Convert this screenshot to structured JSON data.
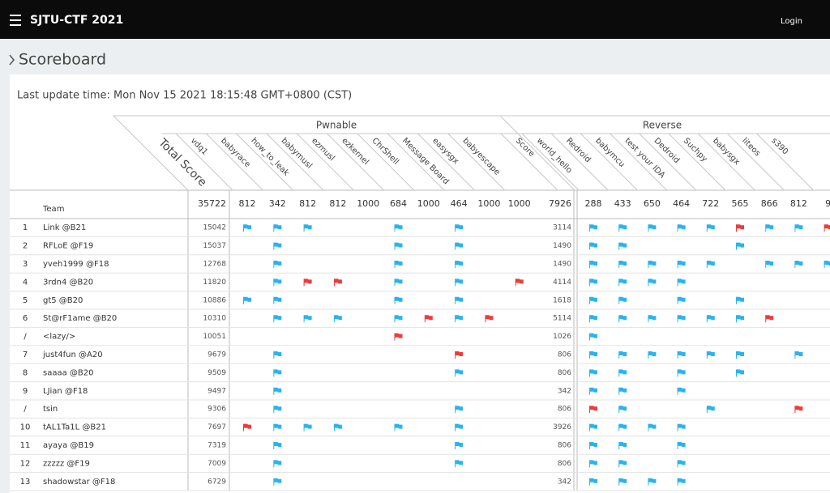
{
  "header": {
    "brand": "SJTU-CTF 2021",
    "login": "Login"
  },
  "page_title": "Scoreboard",
  "last_update": "Last update time: Mon Nov 15 2021 18:15:48 GMT+0800 (CST)",
  "table": {
    "team_header": "Team",
    "total_header": "Total Score",
    "total_points": 35722,
    "categories": [
      {
        "name": "Pwnable",
        "score_header": "Score",
        "score_points": 7926,
        "challenges": [
          {
            "name": "vdq1",
            "points": 812
          },
          {
            "name": "babyrace",
            "points": 342
          },
          {
            "name": "how_to_leak",
            "points": 812
          },
          {
            "name": "babymusl",
            "points": 812
          },
          {
            "name": "ezmusl",
            "points": 1000
          },
          {
            "name": "ezkernel",
            "points": 684
          },
          {
            "name": "ChrShell",
            "points": 1000
          },
          {
            "name": "Message Board",
            "points": 464
          },
          {
            "name": "easysgx",
            "points": 1000
          },
          {
            "name": "babyescape",
            "points": 1000
          }
        ]
      },
      {
        "name": "Reverse",
        "challenges": [
          {
            "name": "world_hello",
            "points": 288
          },
          {
            "name": "Redroid",
            "points": 433
          },
          {
            "name": "babymcu",
            "points": 650
          },
          {
            "name": "test your IDA",
            "points": 464
          },
          {
            "name": "Dedroid",
            "points": 722
          },
          {
            "name": "Suchpy",
            "points": 565
          },
          {
            "name": "babysgx",
            "points": 866
          },
          {
            "name": "liteos",
            "points": 812
          },
          {
            "name": "s390",
            "points": "9"
          }
        ]
      }
    ],
    "rows": [
      {
        "rank": 1,
        "team": "Link @B21",
        "total": 15042,
        "score": 3114,
        "flags": [
          [
            "b",
            "b",
            "b",
            null,
            null,
            "b",
            null,
            "b",
            null,
            null
          ],
          [
            "b",
            "b",
            "b",
            "b",
            "b",
            "r",
            "b",
            "b",
            "r"
          ]
        ]
      },
      {
        "rank": 2,
        "team": "RFLoE @F19",
        "total": 15037,
        "score": 1490,
        "flags": [
          [
            null,
            "b",
            null,
            null,
            null,
            "b",
            null,
            "b",
            null,
            null
          ],
          [
            "b",
            "b",
            null,
            null,
            null,
            "b",
            null,
            null,
            null
          ]
        ]
      },
      {
        "rank": 3,
        "team": "yveh1999 @F18",
        "total": 12768,
        "score": 1490,
        "flags": [
          [
            null,
            "b",
            null,
            null,
            null,
            "b",
            null,
            "b",
            null,
            null
          ],
          [
            "b",
            "b",
            "b",
            "b",
            "b",
            null,
            "b",
            "b",
            "b"
          ]
        ]
      },
      {
        "rank": 4,
        "team": "3rdn4 @B20",
        "total": 11820,
        "score": 4114,
        "flags": [
          [
            null,
            "b",
            "r",
            "r",
            null,
            "b",
            null,
            "b",
            null,
            "r"
          ],
          [
            "b",
            "b",
            "b",
            "b",
            null,
            null,
            null,
            null,
            null
          ]
        ]
      },
      {
        "rank": 5,
        "team": "gt5 @B20",
        "total": 10886,
        "score": 1618,
        "flags": [
          [
            "b",
            "b",
            null,
            null,
            null,
            "b",
            null,
            "b",
            null,
            null
          ],
          [
            "b",
            "b",
            null,
            "b",
            null,
            "b",
            null,
            null,
            null
          ]
        ]
      },
      {
        "rank": 6,
        "team": "St@rF1ame @B20",
        "total": 10310,
        "score": 5114,
        "flags": [
          [
            null,
            "b",
            "b",
            "b",
            null,
            "b",
            "r",
            "b",
            "r",
            null
          ],
          [
            "b",
            "b",
            "b",
            "b",
            "b",
            "b",
            "r",
            null,
            null
          ]
        ]
      },
      {
        "rank": "/",
        "team": "<lazy/>",
        "total": 10051,
        "score": 1026,
        "flags": [
          [
            null,
            null,
            null,
            null,
            null,
            "r",
            null,
            null,
            null,
            null
          ],
          [
            "b",
            null,
            null,
            null,
            null,
            null,
            null,
            null,
            null
          ]
        ]
      },
      {
        "rank": 7,
        "team": "just4fun @A20",
        "total": 9679,
        "score": 806,
        "flags": [
          [
            null,
            "b",
            null,
            null,
            null,
            null,
            null,
            "r",
            null,
            null
          ],
          [
            "b",
            "b",
            "b",
            "b",
            "b",
            "b",
            null,
            "b",
            null
          ]
        ]
      },
      {
        "rank": 8,
        "team": "saaaa @B20",
        "total": 9509,
        "score": 806,
        "flags": [
          [
            null,
            "b",
            null,
            null,
            null,
            null,
            null,
            "b",
            null,
            null
          ],
          [
            "b",
            "b",
            null,
            "b",
            null,
            "b",
            null,
            null,
            null
          ]
        ]
      },
      {
        "rank": 9,
        "team": "LJian @F18",
        "total": 9497,
        "score": 342,
        "flags": [
          [
            null,
            "b",
            null,
            null,
            null,
            null,
            null,
            null,
            null,
            null
          ],
          [
            "b",
            "b",
            null,
            "b",
            null,
            null,
            null,
            null,
            null
          ]
        ]
      },
      {
        "rank": "/",
        "team": "tsin",
        "total": 9306,
        "score": 806,
        "flags": [
          [
            null,
            "b",
            null,
            null,
            null,
            null,
            null,
            "b",
            null,
            null
          ],
          [
            "r",
            "b",
            null,
            null,
            "b",
            null,
            null,
            "r",
            null
          ]
        ]
      },
      {
        "rank": 10,
        "team": "tAL1Ta1L @B21",
        "total": 7697,
        "score": 3926,
        "flags": [
          [
            "r",
            "b",
            "b",
            "b",
            null,
            "b",
            null,
            "b",
            null,
            null
          ],
          [
            "b",
            "b",
            "b",
            "b",
            null,
            null,
            null,
            null,
            null
          ]
        ]
      },
      {
        "rank": 11,
        "team": "ayaya @B19",
        "total": 7319,
        "score": 806,
        "flags": [
          [
            null,
            "b",
            null,
            null,
            null,
            null,
            null,
            "b",
            null,
            null
          ],
          [
            "b",
            "b",
            null,
            "b",
            null,
            null,
            null,
            null,
            null
          ]
        ]
      },
      {
        "rank": 12,
        "team": "zzzzz @F19",
        "total": 7009,
        "score": 806,
        "flags": [
          [
            null,
            "b",
            null,
            null,
            null,
            null,
            null,
            "b",
            null,
            null
          ],
          [
            "b",
            "b",
            null,
            "b",
            null,
            null,
            null,
            null,
            null
          ]
        ]
      },
      {
        "rank": 13,
        "team": "shadowstar @F18",
        "total": 6729,
        "score": 342,
        "flags": [
          [
            null,
            "b",
            null,
            null,
            null,
            null,
            null,
            null,
            null,
            null
          ],
          [
            "b",
            "b",
            "b",
            "b",
            null,
            null,
            null,
            null,
            null
          ]
        ]
      }
    ]
  }
}
